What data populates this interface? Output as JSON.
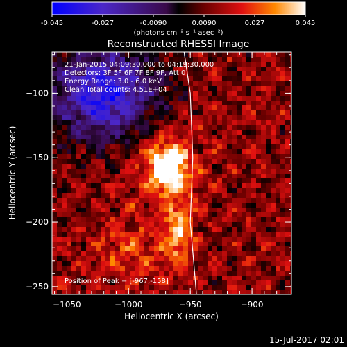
{
  "colorbar": {
    "ticks": [
      "-0.045",
      "-0.027",
      "-0.0090",
      "0.0090",
      "0.027",
      "0.045"
    ],
    "units": "(photons cm⁻² s⁻¹ asec⁻²)",
    "range": [
      -0.045,
      0.045
    ]
  },
  "title": "Reconstructed RHESSI Image",
  "info": [
    "21-Jan-2015 04:09:30.000 to 04:19:30.000",
    "Detectors: 3F 5F 6F 7F 8F 9F, Att 0",
    "Energy Range: 3.0 - 6.0 keV",
    "Clean     Total counts: 4.51E+04"
  ],
  "peak_label": "Position of Peak = [-967,-158]",
  "footer_date": "15-Jul-2017 02:01",
  "chart_data": {
    "type": "heatmap",
    "title": "Reconstructed RHESSI Image",
    "xlabel": "Heliocentric X (arcsec)",
    "ylabel": "Heliocentric Y (arcsec)",
    "xlim": [
      -1062,
      -868
    ],
    "ylim": [
      -256,
      -68
    ],
    "xticks": [
      -1050,
      -1000,
      -950,
      -900
    ],
    "xtick_labels": [
      "−1050",
      "−1000",
      "−950",
      "−900"
    ],
    "yticks": [
      -100,
      -150,
      -200,
      -250
    ],
    "ytick_labels": [
      "−100",
      "−150",
      "−200",
      "−250"
    ],
    "grid": false,
    "peak": [
      -967,
      -158
    ],
    "peak_value": 0.045,
    "secondary_peak": [
      -960,
      -210
    ],
    "limb": [
      [
        -955,
        -68
      ],
      [
        -950,
        -100
      ],
      [
        -948,
        -150
      ],
      [
        -950,
        -200
      ],
      [
        -945,
        -256
      ]
    ]
  }
}
